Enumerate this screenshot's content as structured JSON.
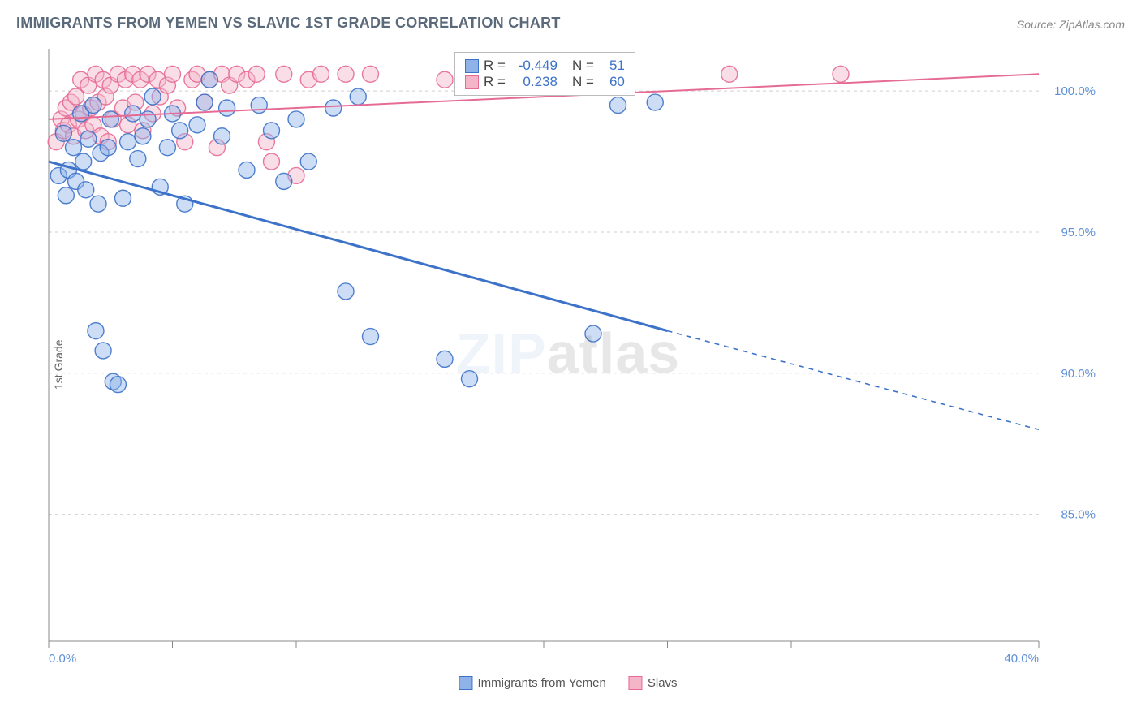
{
  "title": "IMMIGRANTS FROM YEMEN VS SLAVIC 1ST GRADE CORRELATION CHART",
  "source": "Source: ZipAtlas.com",
  "yaxis_label": "1st Grade",
  "watermark": {
    "part1": "ZIP",
    "part2": "atlas"
  },
  "chart": {
    "type": "scatter",
    "xlim": [
      0,
      40
    ],
    "ylim": [
      80.5,
      101.5
    ],
    "x_ticks": [
      0,
      5,
      10,
      15,
      20,
      25,
      30,
      35,
      40
    ],
    "x_tick_labels": {
      "0": "0.0%",
      "40": "40.0%"
    },
    "y_ticks": [
      85.0,
      90.0,
      95.0,
      100.0
    ],
    "y_tick_labels": [
      "85.0%",
      "90.0%",
      "95.0%",
      "100.0%"
    ],
    "grid_color": "#d0d0d0",
    "grid_dash": "4,4",
    "axis_color": "#888",
    "background_color": "#ffffff",
    "marker_radius": 10,
    "marker_opacity": 0.45,
    "series": [
      {
        "name": "Immigrants from Yemen",
        "color_fill": "#8fb3e8",
        "color_stroke": "#3d72c9",
        "trend": {
          "x1": 0,
          "y1": 97.5,
          "x2": 25,
          "y2": 91.5,
          "x2_ext": 40,
          "y2_ext": 88.0,
          "width": 3
        },
        "R": "-0.449",
        "N": "51",
        "points": [
          [
            0.4,
            97.0
          ],
          [
            0.6,
            98.5
          ],
          [
            0.7,
            96.3
          ],
          [
            0.8,
            97.2
          ],
          [
            1.0,
            98.0
          ],
          [
            1.1,
            96.8
          ],
          [
            1.3,
            99.2
          ],
          [
            1.4,
            97.5
          ],
          [
            1.5,
            96.5
          ],
          [
            1.6,
            98.3
          ],
          [
            1.8,
            99.5
          ],
          [
            1.9,
            91.5
          ],
          [
            2.0,
            96.0
          ],
          [
            2.1,
            97.8
          ],
          [
            2.2,
            90.8
          ],
          [
            2.4,
            98.0
          ],
          [
            2.5,
            99.0
          ],
          [
            2.6,
            89.7
          ],
          [
            2.8,
            89.6
          ],
          [
            3.0,
            96.2
          ],
          [
            3.2,
            98.2
          ],
          [
            3.4,
            99.2
          ],
          [
            3.6,
            97.6
          ],
          [
            3.8,
            98.4
          ],
          [
            4.0,
            99.0
          ],
          [
            4.2,
            99.8
          ],
          [
            4.5,
            96.6
          ],
          [
            4.8,
            98.0
          ],
          [
            5.0,
            99.2
          ],
          [
            5.3,
            98.6
          ],
          [
            5.5,
            96.0
          ],
          [
            6.0,
            98.8
          ],
          [
            6.3,
            99.6
          ],
          [
            6.5,
            100.4
          ],
          [
            7.0,
            98.4
          ],
          [
            7.2,
            99.4
          ],
          [
            8.0,
            97.2
          ],
          [
            8.5,
            99.5
          ],
          [
            9.0,
            98.6
          ],
          [
            9.5,
            96.8
          ],
          [
            10.0,
            99.0
          ],
          [
            10.5,
            97.5
          ],
          [
            11.5,
            99.4
          ],
          [
            12.0,
            92.9
          ],
          [
            12.5,
            99.8
          ],
          [
            13.0,
            91.3
          ],
          [
            16.0,
            90.5
          ],
          [
            17.0,
            89.8
          ],
          [
            22.0,
            91.4
          ],
          [
            23.0,
            99.5
          ],
          [
            24.5,
            99.6
          ]
        ]
      },
      {
        "name": "Slavs",
        "color_fill": "#f4b5c9",
        "color_stroke": "#e56b95",
        "trend": {
          "x1": 0,
          "y1": 99.0,
          "x2": 40,
          "y2": 100.6,
          "width": 2
        },
        "R": "0.238",
        "N": "60",
        "points": [
          [
            0.3,
            98.2
          ],
          [
            0.5,
            99.0
          ],
          [
            0.6,
            98.6
          ],
          [
            0.7,
            99.4
          ],
          [
            0.8,
            98.8
          ],
          [
            0.9,
            99.6
          ],
          [
            1.0,
            98.4
          ],
          [
            1.1,
            99.8
          ],
          [
            1.2,
            99.0
          ],
          [
            1.3,
            100.4
          ],
          [
            1.4,
            99.2
          ],
          [
            1.5,
            98.6
          ],
          [
            1.6,
            100.2
          ],
          [
            1.7,
            99.4
          ],
          [
            1.8,
            98.8
          ],
          [
            1.9,
            100.6
          ],
          [
            2.0,
            99.6
          ],
          [
            2.1,
            98.4
          ],
          [
            2.2,
            100.4
          ],
          [
            2.3,
            99.8
          ],
          [
            2.4,
            98.2
          ],
          [
            2.5,
            100.2
          ],
          [
            2.6,
            99.0
          ],
          [
            2.8,
            100.6
          ],
          [
            3.0,
            99.4
          ],
          [
            3.1,
            100.4
          ],
          [
            3.2,
            98.8
          ],
          [
            3.4,
            100.6
          ],
          [
            3.5,
            99.6
          ],
          [
            3.7,
            100.4
          ],
          [
            3.8,
            98.6
          ],
          [
            4.0,
            100.6
          ],
          [
            4.2,
            99.2
          ],
          [
            4.4,
            100.4
          ],
          [
            4.5,
            99.8
          ],
          [
            4.8,
            100.2
          ],
          [
            5.0,
            100.6
          ],
          [
            5.2,
            99.4
          ],
          [
            5.5,
            98.2
          ],
          [
            5.8,
            100.4
          ],
          [
            6.0,
            100.6
          ],
          [
            6.3,
            99.6
          ],
          [
            6.5,
            100.4
          ],
          [
            6.8,
            98.0
          ],
          [
            7.0,
            100.6
          ],
          [
            7.3,
            100.2
          ],
          [
            7.6,
            100.6
          ],
          [
            8.0,
            100.4
          ],
          [
            8.4,
            100.6
          ],
          [
            8.8,
            98.2
          ],
          [
            9.0,
            97.5
          ],
          [
            9.5,
            100.6
          ],
          [
            10.0,
            97.0
          ],
          [
            10.5,
            100.4
          ],
          [
            11.0,
            100.6
          ],
          [
            12.0,
            100.6
          ],
          [
            13.0,
            100.6
          ],
          [
            16.0,
            100.4
          ],
          [
            27.5,
            100.6
          ],
          [
            32.0,
            100.6
          ]
        ]
      }
    ]
  },
  "legend_box": {
    "R_label": "R =",
    "N_label": "N =",
    "value_color": "#3d72c9"
  },
  "bottom_legend": [
    {
      "label": "Immigrants from Yemen",
      "fill": "#8fb3e8",
      "stroke": "#3d72c9"
    },
    {
      "label": "Slavs",
      "fill": "#f4b5c9",
      "stroke": "#e56b95"
    }
  ]
}
